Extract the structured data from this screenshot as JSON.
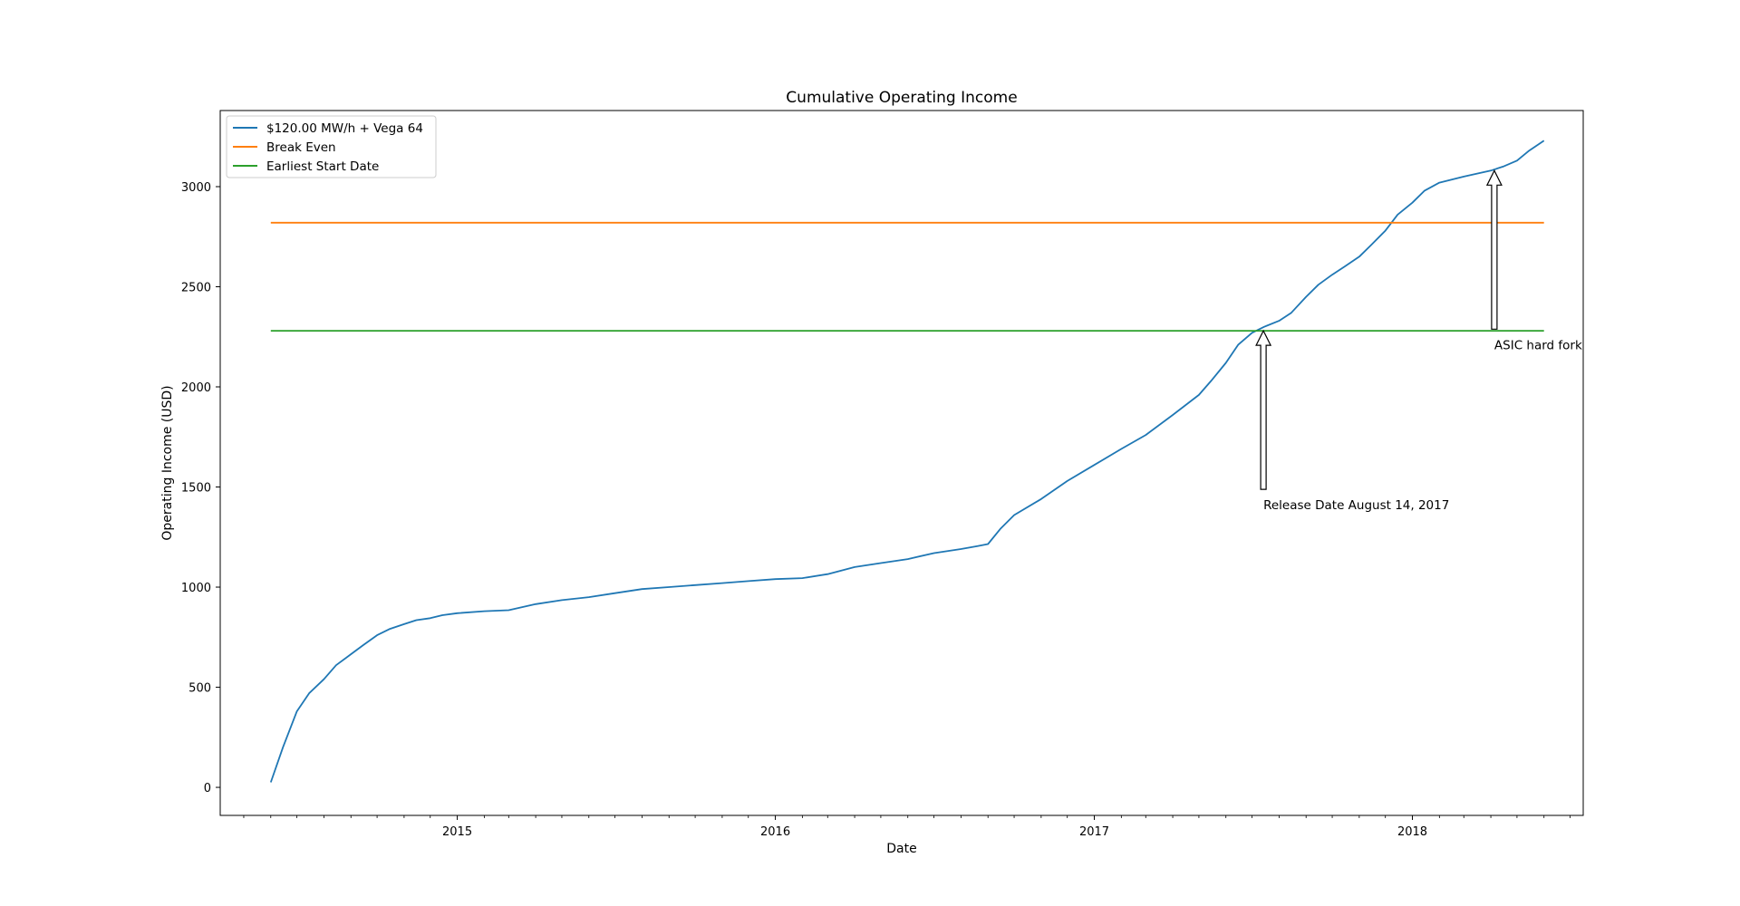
{
  "chart_data": {
    "type": "line",
    "title": "Cumulative Operating Income",
    "xlabel": "Date",
    "ylabel": "Operating Income (USD)",
    "xlim": [
      "2014-04-04",
      "2018-07-16"
    ],
    "ylim": [
      -140,
      3380
    ],
    "x_ticks": [
      {
        "date": "2015-01-01",
        "label": "2015"
      },
      {
        "date": "2016-01-01",
        "label": "2016"
      },
      {
        "date": "2017-01-01",
        "label": "2017"
      },
      {
        "date": "2018-01-01",
        "label": "2018"
      }
    ],
    "y_ticks": [
      0,
      500,
      1000,
      1500,
      2000,
      2500,
      3000
    ],
    "grid": false,
    "legend": {
      "placement": "top-left"
    },
    "series": [
      {
        "name": "$120.00 MW/h + Vega 64",
        "color": "#1f77b4",
        "x": [
          "2014-06-01",
          "2014-06-15",
          "2014-07-01",
          "2014-07-15",
          "2014-08-01",
          "2014-08-15",
          "2014-09-01",
          "2014-09-15",
          "2014-10-01",
          "2014-10-15",
          "2014-11-01",
          "2014-11-15",
          "2014-12-01",
          "2014-12-15",
          "2015-01-01",
          "2015-02-01",
          "2015-03-01",
          "2015-04-01",
          "2015-05-01",
          "2015-06-01",
          "2015-07-01",
          "2015-08-01",
          "2015-09-01",
          "2015-10-01",
          "2015-11-01",
          "2015-12-01",
          "2016-01-01",
          "2016-02-01",
          "2016-03-01",
          "2016-04-01",
          "2016-05-01",
          "2016-06-01",
          "2016-07-01",
          "2016-08-01",
          "2016-08-20",
          "2016-09-01",
          "2016-09-15",
          "2016-10-01",
          "2016-11-01",
          "2016-12-01",
          "2017-01-01",
          "2017-02-01",
          "2017-03-01",
          "2017-04-01",
          "2017-05-01",
          "2017-05-15",
          "2017-06-01",
          "2017-06-15",
          "2017-07-01",
          "2017-07-15",
          "2017-08-01",
          "2017-08-15",
          "2017-09-01",
          "2017-09-15",
          "2017-10-01",
          "2017-10-15",
          "2017-11-01",
          "2017-11-15",
          "2017-12-01",
          "2017-12-15",
          "2018-01-01",
          "2018-01-15",
          "2018-02-01",
          "2018-03-01",
          "2018-04-01",
          "2018-04-15",
          "2018-05-01",
          "2018-05-15",
          "2018-06-01"
        ],
        "y": [
          25,
          200,
          380,
          470,
          540,
          610,
          665,
          710,
          760,
          790,
          815,
          835,
          845,
          860,
          870,
          880,
          885,
          915,
          935,
          950,
          970,
          990,
          1000,
          1010,
          1020,
          1030,
          1040,
          1045,
          1065,
          1100,
          1120,
          1140,
          1170,
          1190,
          1205,
          1215,
          1290,
          1360,
          1440,
          1530,
          1610,
          1690,
          1760,
          1860,
          1960,
          2030,
          2120,
          2210,
          2270,
          2300,
          2330,
          2370,
          2450,
          2510,
          2560,
          2600,
          2650,
          2710,
          2780,
          2860,
          2920,
          2980,
          3020,
          3050,
          3080,
          3100,
          3130,
          3180,
          3230
        ]
      },
      {
        "name": "Break Even",
        "color": "#ff7f0e",
        "x": [
          "2014-06-01",
          "2018-06-01"
        ],
        "y": [
          2820,
          2820
        ]
      },
      {
        "name": "Earliest Start Date",
        "color": "#2ca02c",
        "x": [
          "2014-06-01",
          "2018-06-01"
        ],
        "y": [
          2280,
          2280
        ]
      }
    ],
    "annotations": [
      {
        "text": "Release Date August 14, 2017",
        "date": "2017-07-14",
        "y": 2280
      },
      {
        "text": "ASIC hard fork",
        "date": "2018-04-05",
        "y": 3080
      }
    ]
  }
}
